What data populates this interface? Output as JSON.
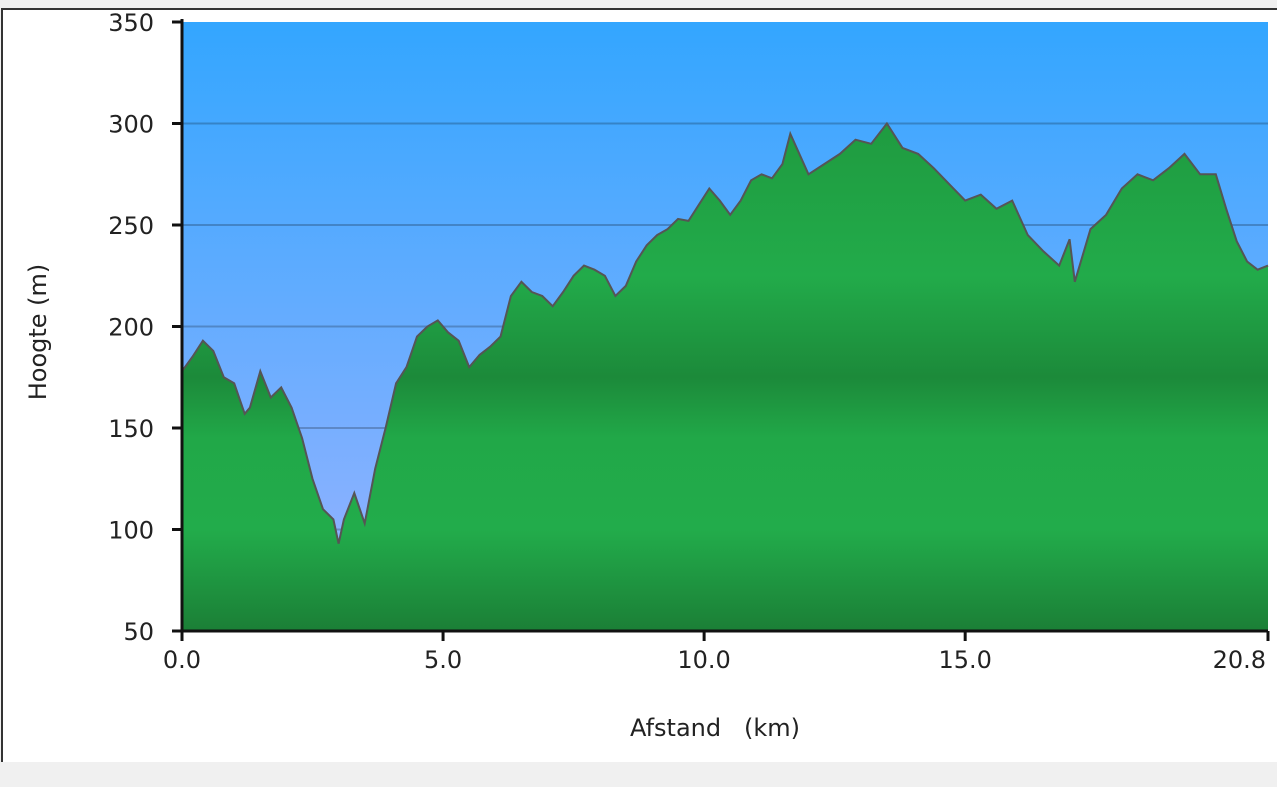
{
  "chart_data": {
    "type": "area",
    "title": "",
    "xlabel": "Afstand   (km)",
    "ylabel": "Hoogte (m)",
    "xlim": [
      0,
      20.8
    ],
    "ylim": [
      50,
      350
    ],
    "xticks": [
      "0.0",
      "5.0",
      "10.0",
      "15.0",
      "20.8"
    ],
    "xtick_values": [
      0,
      5,
      10,
      15,
      20.8
    ],
    "yticks": [
      50,
      100,
      150,
      200,
      250,
      300,
      350
    ],
    "grid": true,
    "colors": {
      "sky_top": "#33a6ff",
      "sky_bottom": "#9ab3ff",
      "fill": "#22aa4a",
      "fill_dark": "#1b7f36",
      "line": "#555555"
    },
    "x": [
      0,
      0.2,
      0.4,
      0.6,
      0.8,
      1.0,
      1.2,
      1.3,
      1.5,
      1.7,
      1.9,
      2.1,
      2.3,
      2.5,
      2.7,
      2.9,
      3.0,
      3.1,
      3.3,
      3.5,
      3.7,
      3.9,
      4.1,
      4.3,
      4.5,
      4.7,
      4.9,
      5.1,
      5.3,
      5.5,
      5.7,
      5.9,
      6.1,
      6.3,
      6.5,
      6.7,
      6.9,
      7.1,
      7.3,
      7.5,
      7.7,
      7.9,
      8.1,
      8.3,
      8.5,
      8.7,
      8.9,
      9.1,
      9.3,
      9.5,
      9.7,
      9.9,
      10.1,
      10.3,
      10.5,
      10.7,
      10.9,
      11.1,
      11.3,
      11.5,
      11.65,
      12.0,
      12.3,
      12.6,
      12.9,
      13.2,
      13.5,
      13.8,
      14.1,
      14.4,
      14.7,
      15.0,
      15.3,
      15.6,
      15.9,
      16.2,
      16.5,
      16.8,
      17.0,
      17.1,
      17.4,
      17.7,
      18.0,
      18.3,
      18.6,
      18.9,
      19.2,
      19.5,
      19.8,
      20.0,
      20.2,
      20.4,
      20.6,
      20.8
    ],
    "y": [
      178,
      185,
      193,
      188,
      175,
      172,
      157,
      160,
      178,
      165,
      170,
      160,
      145,
      125,
      110,
      105,
      93,
      105,
      118,
      103,
      130,
      150,
      172,
      180,
      195,
      200,
      203,
      197,
      193,
      180,
      186,
      190,
      195,
      215,
      222,
      217,
      215,
      210,
      217,
      225,
      230,
      228,
      225,
      215,
      220,
      232,
      240,
      245,
      248,
      253,
      252,
      260,
      268,
      262,
      255,
      262,
      272,
      275,
      273,
      280,
      295,
      275,
      280,
      285,
      292,
      290,
      300,
      288,
      285,
      278,
      270,
      262,
      265,
      258,
      262,
      245,
      237,
      230,
      243,
      222,
      248,
      255,
      268,
      275,
      272,
      278,
      285,
      275,
      275,
      258,
      242,
      232,
      228,
      230
    ]
  }
}
